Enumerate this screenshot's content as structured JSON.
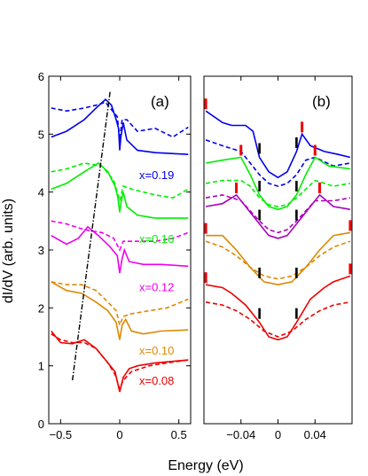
{
  "figure": {
    "ylabel": "dI/dV (arb. units)",
    "xlabel": "Energy (eV)"
  },
  "chart_data": [
    {
      "type": "line",
      "panel_label": "(a)",
      "xlim": [
        -0.6,
        0.6
      ],
      "ylim": [
        0,
        6
      ],
      "xticks": [
        -0.5,
        0,
        0.5
      ],
      "xtick_labels": [
        "−0.5",
        "0",
        "0.5"
      ],
      "yticks": [
        0,
        1,
        2,
        3,
        4,
        5,
        6
      ],
      "ytick_labels": [
        "0",
        "1",
        "2",
        "3",
        "4",
        "5",
        "6"
      ],
      "series": [
        {
          "name": "x=0.19",
          "color": "#0000ee",
          "solid": [
            [
              -0.58,
              4.95
            ],
            [
              -0.45,
              5.05
            ],
            [
              -0.3,
              5.25
            ],
            [
              -0.2,
              5.45
            ],
            [
              -0.12,
              5.6
            ],
            [
              -0.07,
              5.5
            ],
            [
              -0.03,
              5.25
            ],
            [
              -0.01,
              5.1
            ],
            [
              0,
              4.72
            ],
            [
              0.01,
              4.95
            ],
            [
              0.03,
              5.2
            ],
            [
              0.06,
              4.9
            ],
            [
              0.15,
              4.72
            ],
            [
              0.3,
              4.68
            ],
            [
              0.58,
              4.65
            ]
          ],
          "dashed": [
            [
              -0.58,
              5.45
            ],
            [
              -0.45,
              5.4
            ],
            [
              -0.3,
              5.45
            ],
            [
              -0.2,
              5.5
            ],
            [
              -0.12,
              5.55
            ],
            [
              -0.06,
              5.4
            ],
            [
              -0.02,
              5.3
            ],
            [
              0,
              4.9
            ],
            [
              0.02,
              5.25
            ],
            [
              0.06,
              5.25
            ],
            [
              0.15,
              5.05
            ],
            [
              0.3,
              5.1
            ],
            [
              0.45,
              4.95
            ],
            [
              0.58,
              5.12
            ]
          ]
        },
        {
          "name": "x=0.16",
          "color": "#00ee00",
          "solid": [
            [
              -0.58,
              4.05
            ],
            [
              -0.45,
              4.15
            ],
            [
              -0.3,
              4.35
            ],
            [
              -0.18,
              4.5
            ],
            [
              -0.1,
              4.35
            ],
            [
              -0.04,
              4.1
            ],
            [
              -0.015,
              3.9
            ],
            [
              0,
              3.65
            ],
            [
              0.01,
              3.8
            ],
            [
              0.03,
              4.0
            ],
            [
              0.06,
              3.75
            ],
            [
              0.15,
              3.6
            ],
            [
              0.3,
              3.55
            ],
            [
              0.58,
              3.55
            ]
          ],
          "dashed": [
            [
              -0.58,
              4.35
            ],
            [
              -0.45,
              4.4
            ],
            [
              -0.3,
              4.5
            ],
            [
              -0.15,
              4.45
            ],
            [
              -0.05,
              4.2
            ],
            [
              0,
              3.85
            ],
            [
              0.03,
              4.1
            ],
            [
              0.1,
              4.05
            ],
            [
              0.3,
              3.95
            ],
            [
              0.45,
              3.9
            ],
            [
              0.58,
              4.05
            ]
          ]
        },
        {
          "name": "x=0.12",
          "color": "#ee00ee",
          "solid": [
            [
              -0.58,
              3.25
            ],
            [
              -0.45,
              3.1
            ],
            [
              -0.35,
              3.2
            ],
            [
              -0.27,
              3.4
            ],
            [
              -0.18,
              3.25
            ],
            [
              -0.08,
              3.05
            ],
            [
              -0.02,
              2.9
            ],
            [
              0,
              2.6
            ],
            [
              0.02,
              2.85
            ],
            [
              0.04,
              3.0
            ],
            [
              0.08,
              2.8
            ],
            [
              0.2,
              2.75
            ],
            [
              0.35,
              2.75
            ],
            [
              0.58,
              2.72
            ]
          ],
          "dashed": [
            [
              -0.58,
              3.5
            ],
            [
              -0.45,
              3.45
            ],
            [
              -0.3,
              3.35
            ],
            [
              -0.15,
              3.3
            ],
            [
              -0.05,
              3.2
            ],
            [
              0,
              3.0
            ],
            [
              0.03,
              3.15
            ],
            [
              0.1,
              3.15
            ],
            [
              0.3,
              3.15
            ],
            [
              0.45,
              3.2
            ],
            [
              0.58,
              3.3
            ]
          ]
        },
        {
          "name": "x=0.10",
          "color": "#dd8800",
          "solid": [
            [
              -0.58,
              2.45
            ],
            [
              -0.45,
              2.3
            ],
            [
              -0.32,
              2.25
            ],
            [
              -0.2,
              2.1
            ],
            [
              -0.1,
              1.95
            ],
            [
              -0.03,
              1.75
            ],
            [
              0,
              1.45
            ],
            [
              0.02,
              1.7
            ],
            [
              0.05,
              1.8
            ],
            [
              0.1,
              1.6
            ],
            [
              0.2,
              1.55
            ],
            [
              0.35,
              1.6
            ],
            [
              0.58,
              1.62
            ]
          ],
          "dashed": [
            [
              -0.58,
              2.45
            ],
            [
              -0.45,
              2.4
            ],
            [
              -0.32,
              2.4
            ],
            [
              -0.2,
              2.3
            ],
            [
              -0.1,
              2.1
            ],
            [
              -0.03,
              1.95
            ],
            [
              0,
              1.7
            ],
            [
              0.03,
              1.85
            ],
            [
              0.1,
              1.9
            ],
            [
              0.25,
              1.95
            ],
            [
              0.4,
              2.0
            ],
            [
              0.58,
              2.15
            ]
          ]
        },
        {
          "name": "x=0.08",
          "color": "#ee0000",
          "solid": [
            [
              -0.58,
              1.6
            ],
            [
              -0.5,
              1.4
            ],
            [
              -0.4,
              1.38
            ],
            [
              -0.3,
              1.45
            ],
            [
              -0.2,
              1.3
            ],
            [
              -0.1,
              1.05
            ],
            [
              -0.04,
              0.9
            ],
            [
              0,
              0.55
            ],
            [
              0.03,
              0.8
            ],
            [
              0.08,
              0.95
            ],
            [
              0.15,
              1.0
            ],
            [
              0.3,
              1.05
            ],
            [
              0.58,
              1.1
            ]
          ],
          "dashed": [
            [
              -0.58,
              1.55
            ],
            [
              -0.5,
              1.45
            ],
            [
              -0.4,
              1.4
            ],
            [
              -0.3,
              1.4
            ],
            [
              -0.2,
              1.3
            ],
            [
              -0.1,
              1.05
            ],
            [
              -0.04,
              0.85
            ],
            [
              0,
              0.6
            ],
            [
              0.03,
              0.75
            ],
            [
              0.1,
              0.9
            ],
            [
              0.25,
              1.0
            ],
            [
              0.4,
              1.05
            ],
            [
              0.58,
              1.1
            ]
          ]
        }
      ],
      "guide_line": [
        [
          -0.4,
          0.75
        ],
        [
          -0.08,
          5.75
        ]
      ]
    },
    {
      "type": "line",
      "panel_label": "(b)",
      "xlim": [
        -0.08,
        0.08
      ],
      "xticks": [
        -0.04,
        0,
        0.04
      ],
      "xtick_labels": [
        "−0.04",
        "0",
        "0.04"
      ],
      "series": [
        {
          "name": "x=0.19",
          "color": "#0000ee",
          "solid": [
            [
              -0.078,
              5.4
            ],
            [
              -0.06,
              5.2
            ],
            [
              -0.05,
              5.15
            ],
            [
              -0.035,
              5.15
            ],
            [
              -0.027,
              5.05
            ],
            [
              -0.02,
              4.6
            ],
            [
              -0.01,
              4.35
            ],
            [
              0,
              4.25
            ],
            [
              0.01,
              4.35
            ],
            [
              0.02,
              4.7
            ],
            [
              0.026,
              5.0
            ],
            [
              0.035,
              4.8
            ],
            [
              0.05,
              4.7
            ],
            [
              0.065,
              4.65
            ],
            [
              0.078,
              4.6
            ]
          ],
          "dashed": [
            [
              -0.078,
              4.9
            ],
            [
              -0.06,
              4.8
            ],
            [
              -0.04,
              4.7
            ],
            [
              -0.03,
              4.5
            ],
            [
              -0.02,
              4.3
            ],
            [
              -0.01,
              4.15
            ],
            [
              0,
              4.1
            ],
            [
              0.01,
              4.15
            ],
            [
              0.02,
              4.3
            ],
            [
              0.03,
              4.55
            ],
            [
              0.04,
              4.6
            ],
            [
              0.06,
              4.45
            ],
            [
              0.078,
              4.5
            ]
          ]
        },
        {
          "name": "x=0.16",
          "color": "#00ee00",
          "solid": [
            [
              -0.078,
              4.5
            ],
            [
              -0.06,
              4.55
            ],
            [
              -0.04,
              4.6
            ],
            [
              -0.03,
              4.3
            ],
            [
              -0.02,
              3.95
            ],
            [
              -0.01,
              3.75
            ],
            [
              0,
              3.7
            ],
            [
              0.01,
              3.75
            ],
            [
              0.02,
              3.95
            ],
            [
              0.03,
              4.3
            ],
            [
              0.04,
              4.6
            ],
            [
              0.055,
              4.45
            ],
            [
              0.078,
              4.4
            ]
          ],
          "dashed": [
            [
              -0.078,
              4.15
            ],
            [
              -0.06,
              4.2
            ],
            [
              -0.04,
              4.2
            ],
            [
              -0.03,
              4.1
            ],
            [
              -0.02,
              3.9
            ],
            [
              -0.01,
              3.78
            ],
            [
              0,
              3.75
            ],
            [
              0.01,
              3.78
            ],
            [
              0.02,
              3.9
            ],
            [
              0.03,
              4.05
            ],
            [
              0.04,
              4.2
            ],
            [
              0.06,
              4.1
            ],
            [
              0.078,
              4.15
            ]
          ]
        },
        {
          "name": "x=0.12",
          "color": "#aa00bb",
          "solid": [
            [
              -0.078,
              3.75
            ],
            [
              -0.06,
              3.8
            ],
            [
              -0.045,
              3.95
            ],
            [
              -0.035,
              3.75
            ],
            [
              -0.02,
              3.45
            ],
            [
              -0.01,
              3.25
            ],
            [
              0,
              3.2
            ],
            [
              0.01,
              3.25
            ],
            [
              0.02,
              3.45
            ],
            [
              0.035,
              3.75
            ],
            [
              0.045,
              3.95
            ],
            [
              0.06,
              3.75
            ],
            [
              0.078,
              3.7
            ]
          ],
          "dashed": [
            [
              -0.078,
              3.9
            ],
            [
              -0.06,
              3.95
            ],
            [
              -0.04,
              3.85
            ],
            [
              -0.02,
              3.5
            ],
            [
              -0.01,
              3.35
            ],
            [
              0,
              3.3
            ],
            [
              0.01,
              3.35
            ],
            [
              0.02,
              3.5
            ],
            [
              0.04,
              3.85
            ],
            [
              0.06,
              3.85
            ],
            [
              0.078,
              3.9
            ]
          ]
        },
        {
          "name": "x=0.10",
          "color": "#dd8800",
          "solid": [
            [
              -0.078,
              3.25
            ],
            [
              -0.06,
              3.25
            ],
            [
              -0.045,
              3.0
            ],
            [
              -0.03,
              2.7
            ],
            [
              -0.015,
              2.45
            ],
            [
              0,
              2.4
            ],
            [
              0.015,
              2.45
            ],
            [
              0.03,
              2.7
            ],
            [
              0.045,
              3.0
            ],
            [
              0.06,
              3.25
            ],
            [
              0.078,
              3.3
            ]
          ],
          "dashed": [
            [
              -0.078,
              3.15
            ],
            [
              -0.06,
              3.05
            ],
            [
              -0.045,
              2.9
            ],
            [
              -0.03,
              2.7
            ],
            [
              -0.015,
              2.55
            ],
            [
              0,
              2.5
            ],
            [
              0.015,
              2.55
            ],
            [
              0.03,
              2.7
            ],
            [
              0.045,
              2.9
            ],
            [
              0.06,
              3.05
            ],
            [
              0.078,
              3.15
            ]
          ]
        },
        {
          "name": "x=0.08",
          "color": "#ee0000",
          "solid": [
            [
              -0.078,
              2.4
            ],
            [
              -0.06,
              2.35
            ],
            [
              -0.05,
              2.25
            ],
            [
              -0.035,
              2.05
            ],
            [
              -0.02,
              1.75
            ],
            [
              -0.01,
              1.5
            ],
            [
              0,
              1.45
            ],
            [
              0.01,
              1.5
            ],
            [
              0.02,
              1.75
            ],
            [
              0.035,
              2.15
            ],
            [
              0.05,
              2.35
            ],
            [
              0.06,
              2.45
            ],
            [
              0.078,
              2.55
            ]
          ],
          "dashed": [
            [
              -0.078,
              2.1
            ],
            [
              -0.06,
              2.05
            ],
            [
              -0.045,
              1.95
            ],
            [
              -0.03,
              1.8
            ],
            [
              -0.015,
              1.6
            ],
            [
              0,
              1.5
            ],
            [
              0.015,
              1.6
            ],
            [
              0.03,
              1.8
            ],
            [
              0.045,
              1.95
            ],
            [
              0.06,
              2.05
            ],
            [
              0.078,
              2.1
            ]
          ]
        }
      ]
    }
  ]
}
